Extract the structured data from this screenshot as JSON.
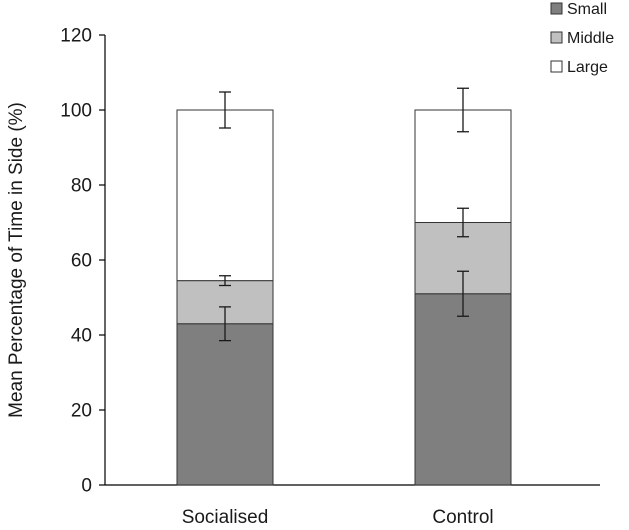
{
  "chart_data": {
    "type": "bar",
    "stacked": true,
    "categories": [
      "Socialised",
      "Control"
    ],
    "series": [
      {
        "name": "Small",
        "values": [
          43,
          51
        ],
        "errors": [
          4.5,
          6
        ],
        "color": "#7f7f7f"
      },
      {
        "name": "Middle",
        "values": [
          11.5,
          19
        ],
        "errors": [
          1.3,
          3.8
        ],
        "color": "#c0c0c0"
      },
      {
        "name": "Large",
        "values": [
          45.5,
          30
        ],
        "errors": [
          4.8,
          5.8
        ],
        "color": "#ffffff"
      }
    ],
    "title": "",
    "xlabel": "",
    "ylabel": "Mean Percentage of Time in Side (%)",
    "ylim": [
      0,
      120
    ],
    "yticks": [
      0,
      20,
      40,
      60,
      80,
      100,
      120
    ],
    "grid": false,
    "legend_position": "top-right"
  }
}
